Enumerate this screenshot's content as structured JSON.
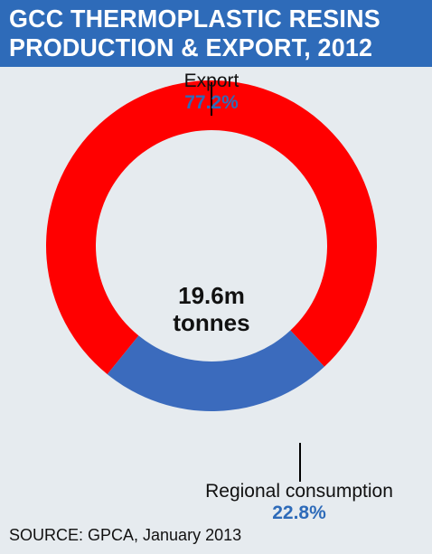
{
  "header": {
    "title_line1": "GCC THERMOPLASTIC RESINS",
    "title_line2": "PRODUCTION & EXPORT, 2012"
  },
  "center_label": {
    "line1": "19.6m",
    "line2": "tonnes"
  },
  "source": "SOURCE: GPCA, January 2013",
  "colors": {
    "export": "#ff0000",
    "regional": "#3b6bbd",
    "title_bg": "#2e6bb9",
    "background": "#e6ebef"
  },
  "chart_data": {
    "type": "pie",
    "style": "donut",
    "title": "GCC THERMOPLASTIC RESINS PRODUCTION & EXPORT, 2012",
    "total": "19.6m tonnes",
    "slices": [
      {
        "label": "Export",
        "value": 77.2,
        "value_label": "77.2%",
        "color": "#ff0000"
      },
      {
        "label": "Regional consumption",
        "value": 22.8,
        "value_label": "22.8%",
        "color": "#3b6bbd"
      }
    ]
  }
}
